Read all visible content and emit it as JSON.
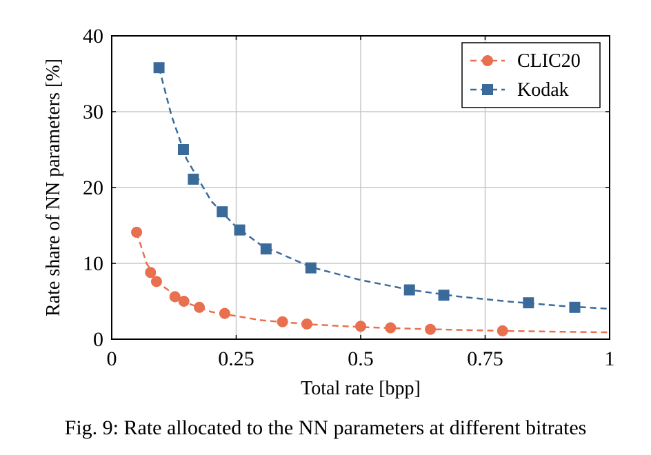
{
  "chart_data": {
    "type": "scatter",
    "xlabel": "Total rate [bpp]",
    "ylabel": "Rate share of NN parameters [%]",
    "xlim": [
      0,
      1
    ],
    "ylim": [
      0,
      40
    ],
    "xticks": [
      0,
      0.25,
      0.5,
      0.75,
      1
    ],
    "xtick_labels": [
      "0",
      "0.25",
      "0.5",
      "0.75",
      "1"
    ],
    "yticks": [
      0,
      10,
      20,
      30,
      40
    ],
    "ytick_labels": [
      "0",
      "10",
      "20",
      "30",
      "40"
    ],
    "grid": true,
    "legend_position": "top-right",
    "series": [
      {
        "name": "CLIC20",
        "color": "#e8704f",
        "marker": "circle",
        "points": [
          {
            "x": 0.05,
            "y": 14.1
          },
          {
            "x": 0.078,
            "y": 8.8
          },
          {
            "x": 0.09,
            "y": 7.6
          },
          {
            "x": 0.127,
            "y": 5.6
          },
          {
            "x": 0.145,
            "y": 5.0
          },
          {
            "x": 0.176,
            "y": 4.2
          },
          {
            "x": 0.227,
            "y": 3.4
          },
          {
            "x": 0.343,
            "y": 2.3
          },
          {
            "x": 0.392,
            "y": 2.0
          },
          {
            "x": 0.5,
            "y": 1.7
          },
          {
            "x": 0.56,
            "y": 1.5
          },
          {
            "x": 0.64,
            "y": 1.3
          },
          {
            "x": 0.785,
            "y": 1.1
          }
        ],
        "fit_curve": [
          {
            "x": 0.05,
            "y": 14.1
          },
          {
            "x": 0.07,
            "y": 10.0
          },
          {
            "x": 0.1,
            "y": 7.1
          },
          {
            "x": 0.15,
            "y": 4.8
          },
          {
            "x": 0.2,
            "y": 3.6
          },
          {
            "x": 0.3,
            "y": 2.5
          },
          {
            "x": 0.4,
            "y": 1.95
          },
          {
            "x": 0.5,
            "y": 1.6
          },
          {
            "x": 0.6,
            "y": 1.38
          },
          {
            "x": 0.7,
            "y": 1.22
          },
          {
            "x": 0.8,
            "y": 1.08
          },
          {
            "x": 0.9,
            "y": 0.98
          },
          {
            "x": 1.0,
            "y": 0.9
          }
        ]
      },
      {
        "name": "Kodak",
        "color": "#3a6a9a",
        "marker": "square",
        "points": [
          {
            "x": 0.095,
            "y": 35.8
          },
          {
            "x": 0.144,
            "y": 25.0
          },
          {
            "x": 0.164,
            "y": 21.1
          },
          {
            "x": 0.222,
            "y": 16.8
          },
          {
            "x": 0.257,
            "y": 14.4
          },
          {
            "x": 0.31,
            "y": 11.9
          },
          {
            "x": 0.4,
            "y": 9.4
          },
          {
            "x": 0.598,
            "y": 6.5
          },
          {
            "x": 0.667,
            "y": 5.8
          },
          {
            "x": 0.837,
            "y": 4.8
          },
          {
            "x": 0.93,
            "y": 4.2
          }
        ],
        "fit_curve": [
          {
            "x": 0.095,
            "y": 35.8
          },
          {
            "x": 0.12,
            "y": 29.5
          },
          {
            "x": 0.15,
            "y": 23.8
          },
          {
            "x": 0.2,
            "y": 18.2
          },
          {
            "x": 0.25,
            "y": 14.8
          },
          {
            "x": 0.3,
            "y": 12.4
          },
          {
            "x": 0.4,
            "y": 9.5
          },
          {
            "x": 0.5,
            "y": 7.8
          },
          {
            "x": 0.6,
            "y": 6.5
          },
          {
            "x": 0.7,
            "y": 5.6
          },
          {
            "x": 0.8,
            "y": 4.95
          },
          {
            "x": 0.9,
            "y": 4.4
          },
          {
            "x": 1.0,
            "y": 4.0
          }
        ]
      }
    ]
  },
  "caption": "Fig. 9: Rate allocated to the NN parameters at different bitrates"
}
